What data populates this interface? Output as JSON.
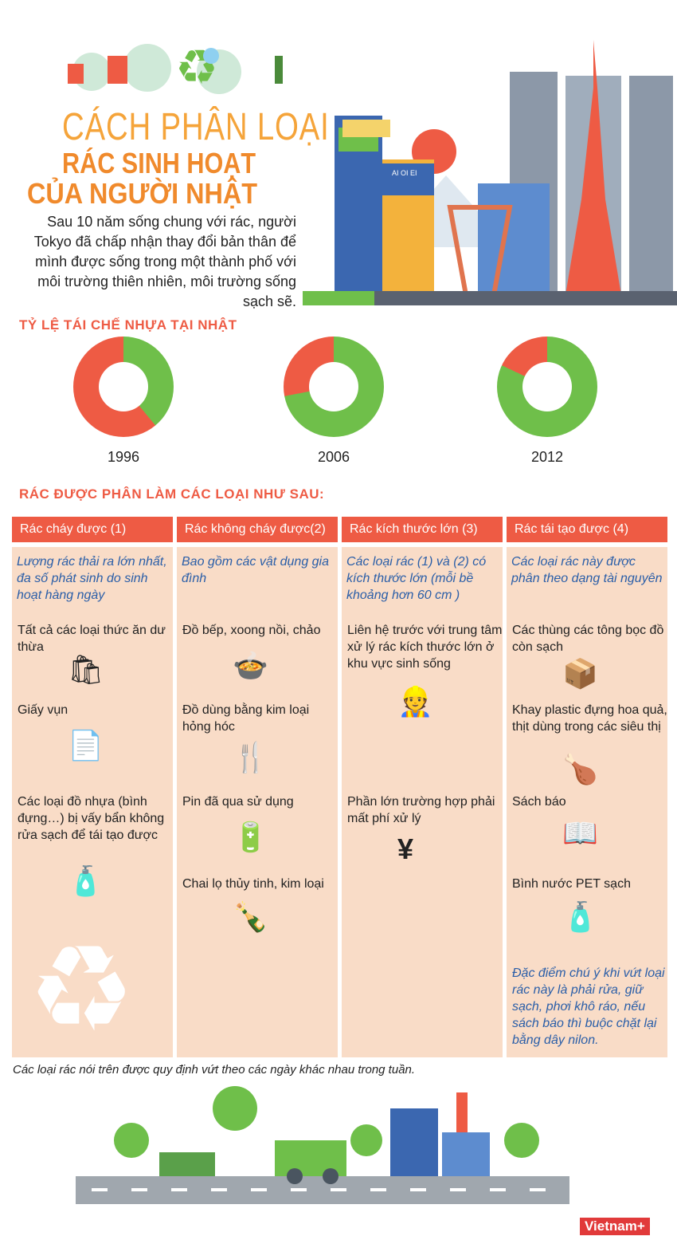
{
  "title": {
    "line1": "CÁCH PHÂN LOẠI",
    "line2": "RÁC SINH HOẠT",
    "line3": "CỦA NGƯỜI NHẬT"
  },
  "intro": "Sau 10 năm sống chung với rác, người Tokyo đã chấp nhận thay đổi bản thân để mình được sống trong một thành phố với môi trường thiên nhiên, môi trường sống sạch sẽ.",
  "illustration": {
    "sign": "AI OI EI"
  },
  "recycle_section": {
    "title": "TỶ LỆ TÁI CHẾ NHỰA TẠI NHẬT",
    "colors": {
      "recycled": "#6fbf4a",
      "other": "#ee5b44"
    },
    "donuts": [
      {
        "year": "1996",
        "recycled_percent": 39
      },
      {
        "year": "2006",
        "recycled_percent": 72
      },
      {
        "year": "2012",
        "recycled_percent": 82
      }
    ]
  },
  "categories_title": "RÁC ĐƯỢC PHÂN LÀM CÁC LOẠI NHƯ SAU:",
  "columns": [
    {
      "header": "Rác cháy được (1)",
      "desc": "Lượng rác thải ra lớn nhất, đa số phát sinh do sinh hoạt hàng ngày",
      "items": [
        {
          "text": "Tất cả các loại thức ăn dư thừa",
          "icon": "grocery-bag-icon"
        },
        {
          "text": "Giấy vụn",
          "icon": "paper-icon"
        },
        {
          "text": "Các loại đồ nhựa (bình đựng…) bị vấy bẩn không rửa sạch để tái tạo được",
          "icon": "plastic-bottles-icon"
        }
      ]
    },
    {
      "header": "Rác không cháy được(2)",
      "desc": "Bao gồm các vật dụng gia đình",
      "items": [
        {
          "text": "Đồ bếp, xoong nồi, chảo",
          "icon": "pots-icon"
        },
        {
          "text": "Đồ dùng bằng kim loại hỏng hóc",
          "icon": "cutlery-icon"
        },
        {
          "text": "Pin đã qua sử dụng",
          "icon": "battery-icon"
        },
        {
          "text": "Chai lọ thủy tinh, kim loại",
          "icon": "glass-bottles-icon"
        }
      ]
    },
    {
      "header": "Rác kích thước lớn (3)",
      "desc": "Các loại rác (1) và (2) có kích thước lớn (mỗi bề khoảng hơn 60 cm )",
      "items": [
        {
          "text": "Liên hệ trước với trung tâm xử lý rác kích thước lớn ở khu vực sinh sống",
          "icon": "worker-icon"
        },
        {
          "text": "Phần lớn trường hợp phải mất phí xử lý",
          "icon": "yen-icon"
        }
      ]
    },
    {
      "header": "Rác tái tạo được (4)",
      "desc": "Các loại rác này được phân theo dạng tài nguyên",
      "items": [
        {
          "text": "Các thùng các tông bọc đồ còn sạch",
          "icon": "cardboard-box-icon"
        },
        {
          "text": "Khay plastic đựng hoa quả, thịt dùng trong các siêu thị",
          "icon": "food-tray-icon"
        },
        {
          "text": "Sách báo",
          "icon": "book-icon"
        },
        {
          "text": "Bình nước PET sạch",
          "icon": "pet-bottle-icon"
        }
      ],
      "note": "Đặc điểm chú ý khi vứt loại rác này là phải rửa, giữ sạch, phơi khô ráo, nếu sách báo thì buộc chặt lại bằng dây nilon."
    }
  ],
  "footer_note": "Các loại rác nói trên được quy định vứt theo các ngày khác nhau trong tuần.",
  "logo": "Vietnam+"
}
